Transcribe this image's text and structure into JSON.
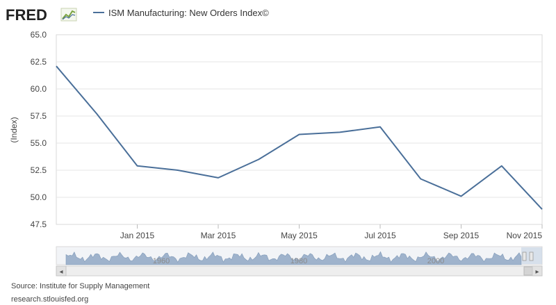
{
  "logo": {
    "text": "FRED",
    "icon": "trend-line-icon"
  },
  "colors": {
    "series": "#4a6f99",
    "plot_bg": "#ffffff",
    "navigator_fill": "#9fb3cc",
    "grid": "#e6e6e6"
  },
  "chart_data": {
    "type": "line",
    "title": "",
    "legend": "ISM Manufacturing: New Orders Index©",
    "ylabel": "(Index)",
    "xlabel": "",
    "ylim": [
      47.5,
      65.0
    ],
    "y_ticks": [
      "47.5",
      "50.0",
      "52.5",
      "55.0",
      "57.5",
      "60.0",
      "62.5",
      "65.0"
    ],
    "y_tick_values": [
      47.5,
      50.0,
      52.5,
      55.0,
      57.5,
      60.0,
      62.5,
      65.0
    ],
    "x_ticks": [
      "Jan 2015",
      "Mar 2015",
      "May 2015",
      "Jul 2015",
      "Sep 2015",
      "Nov 2015"
    ],
    "x_tick_index": [
      2,
      4,
      6,
      8,
      10,
      12
    ],
    "x": [
      "Nov 2014",
      "Dec 2014",
      "Jan 2015",
      "Feb 2015",
      "Mar 2015",
      "Apr 2015",
      "May 2015",
      "Jun 2015",
      "Jul 2015",
      "Aug 2015",
      "Sep 2015",
      "Oct 2015",
      "Nov 2015"
    ],
    "series": [
      {
        "name": "ISM Manufacturing: New Orders Index©",
        "values": [
          62.1,
          57.7,
          52.9,
          52.5,
          51.8,
          53.5,
          55.8,
          56.0,
          56.5,
          51.7,
          50.1,
          52.9,
          48.9
        ]
      }
    ],
    "navigator_labels": [
      "1960",
      "1980",
      "2000"
    ]
  },
  "footer": {
    "source": "Source: Institute for Supply Management",
    "url": "research.stlouisfed.org"
  },
  "scrollbar": {
    "left_arrow": "◂",
    "right_arrow": "▸"
  }
}
